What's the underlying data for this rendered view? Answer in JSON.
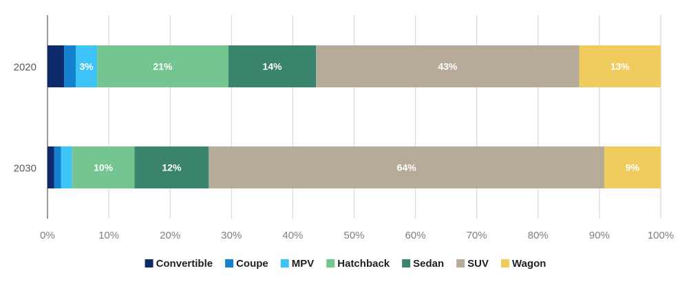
{
  "chart_data": {
    "type": "bar",
    "orientation": "horizontal",
    "stacked": "percent",
    "categories": [
      "2020",
      "2030"
    ],
    "series": [
      {
        "name": "Convertible",
        "color": "#0d2a6b",
        "values": [
          2.7,
          1.1
        ],
        "labels": [
          "",
          ""
        ]
      },
      {
        "name": "Coupe",
        "color": "#1381cf",
        "values": [
          1.9,
          1.1
        ],
        "labels": [
          "",
          ""
        ]
      },
      {
        "name": "MPV",
        "color": "#3fc4f7",
        "values": [
          3.5,
          1.8
        ],
        "labels": [
          "3%",
          ""
        ]
      },
      {
        "name": "Hatchback",
        "color": "#75c590",
        "values": [
          21.4,
          10.2
        ],
        "labels": [
          "21%",
          "10%"
        ]
      },
      {
        "name": "Sedan",
        "color": "#3a846b",
        "values": [
          14.3,
          12.1
        ],
        "labels": [
          "14%",
          "12%"
        ]
      },
      {
        "name": "SUV",
        "color": "#b6ab99",
        "values": [
          42.9,
          64.5
        ],
        "labels": [
          "43%",
          "64%"
        ]
      },
      {
        "name": "Wagon",
        "color": "#f0cb5e",
        "values": [
          13.3,
          9.2
        ],
        "labels": [
          "13%",
          "9%"
        ]
      }
    ],
    "xlim": [
      0,
      100
    ],
    "x_ticks": [
      "0%",
      "10%",
      "20%",
      "30%",
      "40%",
      "50%",
      "60%",
      "70%",
      "80%",
      "90%",
      "100%"
    ],
    "grid": "vertical",
    "legend": "bottom",
    "title": "",
    "xlabel": "",
    "ylabel": ""
  }
}
